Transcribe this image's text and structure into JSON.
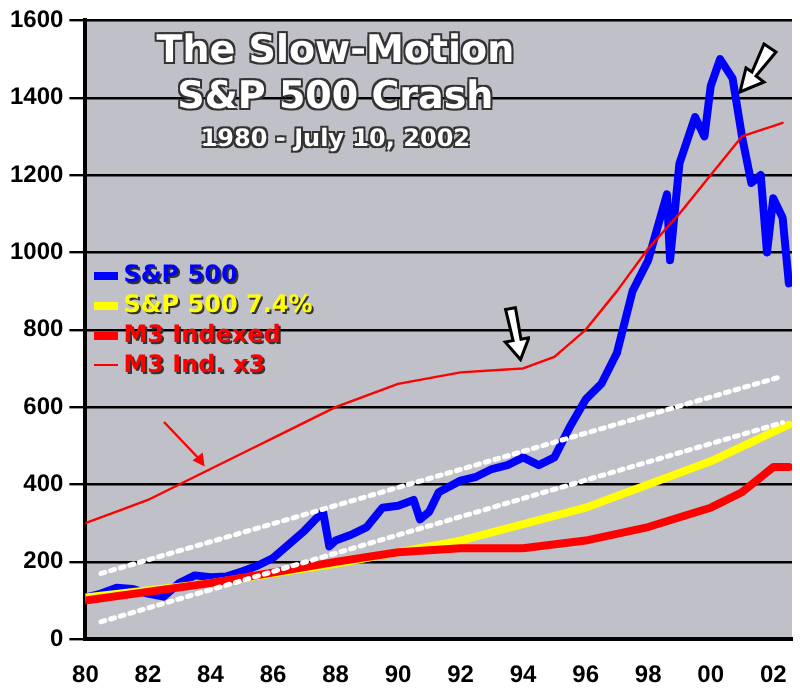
{
  "chart_data": {
    "type": "line",
    "title": "The Slow-Motion S&P 500 Crash",
    "subtitle": "1980 - July 10, 2002",
    "xlim": [
      1980,
      2002.6
    ],
    "xticks": [
      {
        "value": 1980,
        "label": "80"
      },
      {
        "value": 1982,
        "label": "82"
      },
      {
        "value": 1984,
        "label": "84"
      },
      {
        "value": 1986,
        "label": "86"
      },
      {
        "value": 1988,
        "label": "88"
      },
      {
        "value": 1990,
        "label": "90"
      },
      {
        "value": 1992,
        "label": "92"
      },
      {
        "value": 1994,
        "label": "94"
      },
      {
        "value": 1996,
        "label": "96"
      },
      {
        "value": 1998,
        "label": "98"
      },
      {
        "value": 2000,
        "label": "00"
      },
      {
        "value": 2002,
        "label": "02"
      }
    ],
    "ylim": [
      0,
      1600
    ],
    "yticks": [
      0,
      200,
      400,
      600,
      800,
      1000,
      1200,
      1400,
      1600
    ],
    "grid": "y",
    "legend": "left",
    "marker": "none",
    "series": [
      {
        "name": "M3 Ind. x3",
        "color": "#ff0000",
        "x": [
          1980,
          1982,
          1984,
          1986,
          1988,
          1990,
          1992,
          1994,
          1995,
          1996,
          1997,
          1998,
          1999,
          2000,
          2001,
          2002.3
        ],
        "values": [
          300,
          360,
          440,
          520,
          600,
          660,
          690,
          700,
          730,
          800,
          900,
          1010,
          1100,
          1200,
          1300,
          1335
        ]
      },
      {
        "color": "#ffffff",
        "line_style": "dotted",
        "x": [
          1980.5,
          2002.3
        ],
        "values": [
          170,
          680
        ]
      },
      {
        "color": "#ffffff",
        "line_style": "dotted",
        "x": [
          1980.5,
          2002.3
        ],
        "values": [
          45,
          560
        ]
      },
      {
        "name": "M3 Indexed",
        "color": "#ff0000",
        "x": [
          1980,
          1984,
          1988,
          1990,
          1992,
          1994,
          1996,
          1998,
          2000,
          2001,
          2002,
          2002.5
        ],
        "values": [
          100,
          145,
          200,
          225,
          235,
          235,
          255,
          290,
          340,
          380,
          445,
          445
        ]
      },
      {
        "name": "S&P 500 7.4%",
        "color": "#ffff00",
        "x": [
          1980,
          1984,
          1988,
          1992,
          1996,
          2000,
          2002.5
        ],
        "values": [
          108,
          145,
          195,
          255,
          340,
          460,
          555
        ]
      },
      {
        "name": "S&P 500",
        "color": "#0000ff",
        "x": [
          1980,
          1980.5,
          1981,
          1981.5,
          1982,
          1982.5,
          1983,
          1983.5,
          1984,
          1984.5,
          1985,
          1985.5,
          1986,
          1986.5,
          1987,
          1987.6,
          1987.8,
          1988,
          1988.5,
          1989,
          1989.5,
          1990,
          1990.5,
          1990.7,
          1991,
          1991.3,
          1992,
          1992.5,
          1993,
          1993.5,
          1994,
          1994.5,
          1995,
          1995.5,
          1996,
          1996.5,
          1997,
          1997.5,
          1998,
          1998.6,
          1998.7,
          1999,
          1999.5,
          1999.8,
          2000,
          2000.3,
          2000.7,
          2001,
          2001.3,
          2001.6,
          2001.8,
          2002,
          2002.3,
          2002.5
        ],
        "values": [
          108,
          118,
          133,
          130,
          118,
          110,
          145,
          165,
          160,
          162,
          175,
          190,
          210,
          245,
          280,
          330,
          240,
          255,
          270,
          290,
          340,
          345,
          360,
          310,
          330,
          380,
          410,
          420,
          440,
          450,
          470,
          450,
          470,
          550,
          620,
          660,
          740,
          900,
          980,
          1150,
          980,
          1230,
          1350,
          1300,
          1430,
          1500,
          1450,
          1300,
          1180,
          1200,
          1000,
          1140,
          1090,
          920
        ]
      }
    ]
  }
}
